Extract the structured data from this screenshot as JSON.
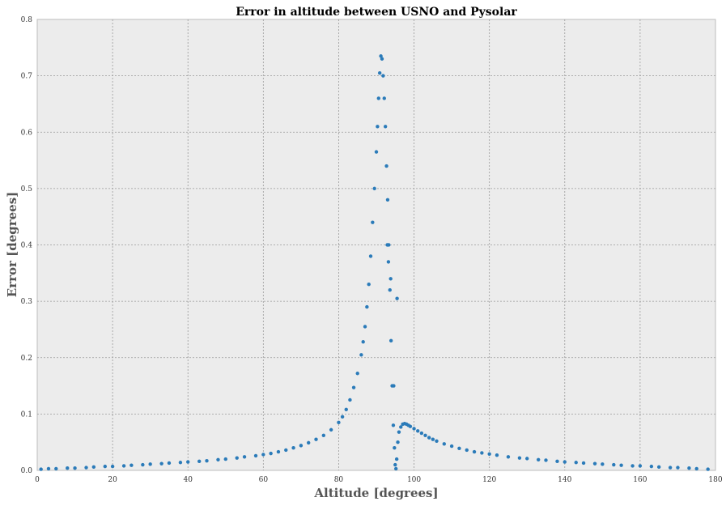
{
  "chart_data": {
    "type": "scatter",
    "title": "Error in altitude between USNO and Pysolar",
    "xlabel": "Altitude [degrees]",
    "ylabel": "Error [degrees]",
    "xlim": [
      0,
      180
    ],
    "ylim": [
      0,
      0.8
    ],
    "xticks": [
      0,
      20,
      40,
      60,
      80,
      100,
      120,
      140,
      160,
      180
    ],
    "yticks": [
      0.0,
      0.1,
      0.2,
      0.3,
      0.4,
      0.5,
      0.6,
      0.7,
      0.8
    ],
    "grid": true,
    "background": "#ececec",
    "marker_color": "#2b7bb9",
    "series": [
      {
        "x": [
          1,
          3,
          5,
          8,
          10,
          13,
          15,
          18,
          20,
          23,
          25,
          28,
          30,
          33,
          35,
          38,
          40,
          43,
          45,
          48,
          50,
          53,
          55,
          58,
          60,
          62,
          64,
          66,
          68,
          70,
          72,
          74,
          76,
          78,
          80,
          81,
          82,
          83,
          84,
          85,
          86,
          86.5,
          87,
          87.5,
          88,
          88.5,
          89,
          89.5,
          90,
          90.3,
          90.6,
          90.9,
          91.2,
          91.5,
          91.8,
          92.1,
          92.4,
          92.7,
          93,
          93.3,
          93.6,
          93.9,
          94.2,
          94.5,
          94.8,
          95.0,
          95.2,
          95.4,
          95.7,
          96,
          96.5,
          97,
          97.5,
          98,
          98.5,
          99,
          100,
          101,
          102,
          103,
          104,
          105,
          106,
          108,
          110,
          112,
          114,
          116,
          118,
          120,
          122,
          125,
          128,
          130,
          133,
          135,
          138,
          140,
          143,
          145,
          148,
          150,
          153,
          155,
          158,
          160,
          163,
          165,
          168,
          170,
          173,
          175,
          178,
          95.5,
          94.6,
          93.8,
          93.2,
          92.9
        ],
        "y": [
          0.002,
          0.003,
          0.003,
          0.004,
          0.004,
          0.005,
          0.006,
          0.007,
          0.007,
          0.008,
          0.009,
          0.01,
          0.011,
          0.012,
          0.013,
          0.014,
          0.015,
          0.016,
          0.017,
          0.019,
          0.02,
          0.022,
          0.024,
          0.026,
          0.028,
          0.03,
          0.033,
          0.036,
          0.04,
          0.044,
          0.049,
          0.055,
          0.062,
          0.072,
          0.085,
          0.095,
          0.108,
          0.125,
          0.147,
          0.172,
          0.205,
          0.228,
          0.255,
          0.29,
          0.33,
          0.38,
          0.44,
          0.5,
          0.565,
          0.61,
          0.66,
          0.705,
          0.735,
          0.73,
          0.7,
          0.66,
          0.61,
          0.54,
          0.48,
          0.4,
          0.32,
          0.23,
          0.15,
          0.08,
          0.04,
          0.01,
          0.003,
          0.02,
          0.05,
          0.068,
          0.077,
          0.082,
          0.083,
          0.082,
          0.08,
          0.078,
          0.074,
          0.07,
          0.066,
          0.062,
          0.058,
          0.055,
          0.052,
          0.047,
          0.043,
          0.039,
          0.036,
          0.033,
          0.031,
          0.029,
          0.027,
          0.024,
          0.022,
          0.021,
          0.019,
          0.018,
          0.016,
          0.015,
          0.014,
          0.013,
          0.012,
          0.011,
          0.01,
          0.009,
          0.008,
          0.008,
          0.007,
          0.006,
          0.005,
          0.005,
          0.004,
          0.003,
          0.002,
          0.305,
          0.15,
          0.34,
          0.37,
          0.4
        ]
      }
    ]
  }
}
